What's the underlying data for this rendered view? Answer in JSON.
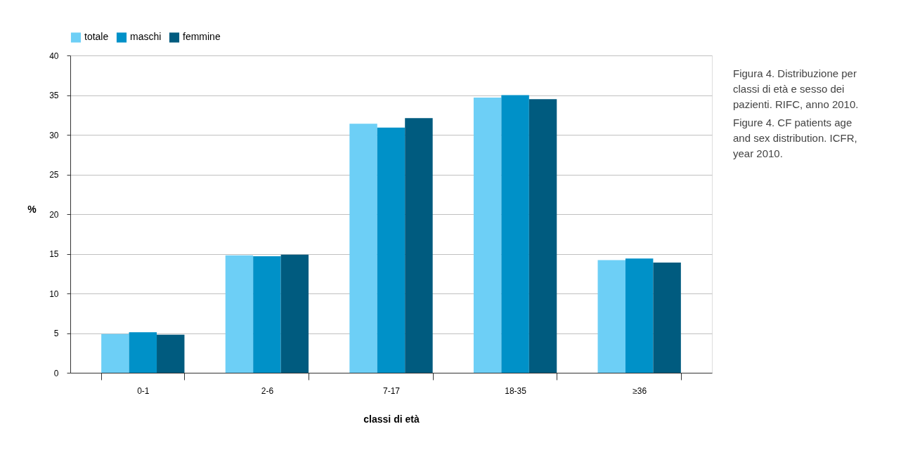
{
  "chart_data": {
    "type": "bar",
    "xlabel": "classi di età",
    "ylabel": "%",
    "categories": [
      "0-1",
      "2-6",
      "7-17",
      "18-35",
      "≥36"
    ],
    "series": [
      {
        "name": "totale",
        "color": "#6dcff6",
        "values": [
          4.9,
          14.8,
          31.4,
          34.7,
          14.2
        ]
      },
      {
        "name": "maschi",
        "color": "#0091c8",
        "values": [
          5.1,
          14.7,
          30.9,
          35.0,
          14.4
        ]
      },
      {
        "name": "femmine",
        "color": "#005b7f",
        "values": [
          4.8,
          14.9,
          32.1,
          34.5,
          13.9
        ]
      }
    ],
    "ylim": [
      0,
      40
    ],
    "yticks": [
      0,
      5,
      10,
      15,
      20,
      25,
      30,
      35,
      40
    ],
    "grid": "y",
    "legend": "top",
    "annotations": [
      "Figura 4. Distribuzione per classi di età e sesso dei pazienti. RIFC, anno 2010.",
      "Figure 4. CF patients age and sex distribution. ICFR, year 2010."
    ]
  }
}
